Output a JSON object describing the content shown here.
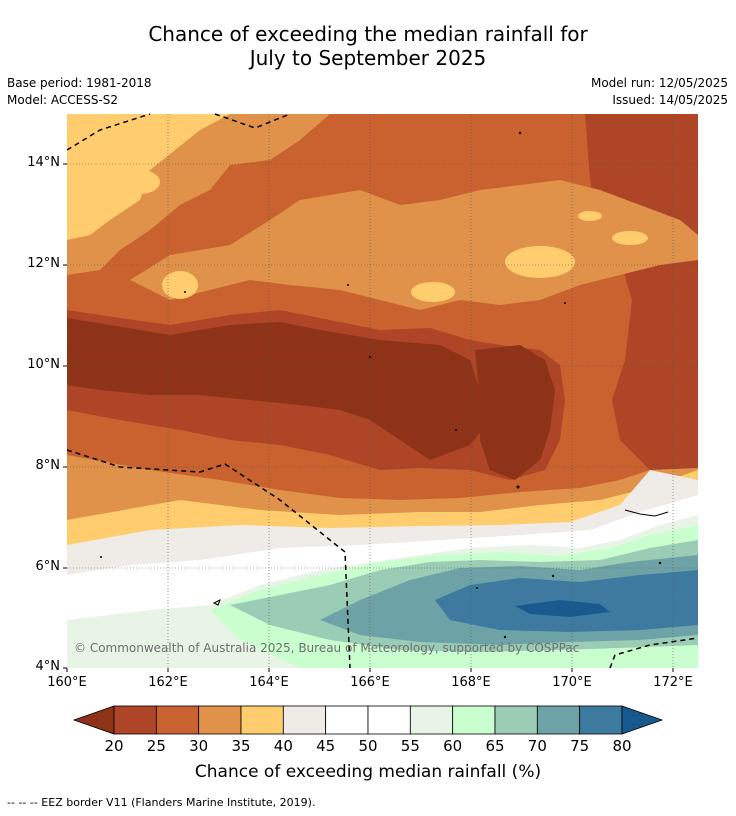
{
  "title_line1": "Chance of exceeding the median rainfall for",
  "title_line2": "July to September 2025",
  "base_period": "Base period: 1981-2018",
  "model": "Model: ACCESS-S2",
  "model_run": "Model run: 12/05/2025",
  "issued": "Issued: 14/05/2025",
  "lat_labels": [
    "14°N",
    "12°N",
    "10°N",
    "8°N",
    "6°N",
    "4°N"
  ],
  "lon_labels": [
    "160°E",
    "162°E",
    "164°E",
    "166°E",
    "168°E",
    "170°E",
    "172°E"
  ],
  "copyright": "© Commonwealth of Australia 2025, Bureau of Meteorology, supported by COSPPac",
  "colorbar": {
    "ticks": [
      "20",
      "25",
      "30",
      "35",
      "40",
      "45",
      "50",
      "55",
      "60",
      "65",
      "70",
      "75",
      "80"
    ],
    "label": "Chance of exceeding median rainfall (%)",
    "colors": [
      "#8e3218",
      "#ad4526",
      "#c9622e",
      "#e0924a",
      "#ffcd6e",
      "#efebe6",
      "#ffffff",
      "#ffffff",
      "#e8f5e6",
      "#c9ffcf",
      "#9bcdb6",
      "#6da3a6",
      "#3e7aa0",
      "#185a8e"
    ]
  },
  "footnote": "-- -- -- EEZ border V11 (Flanders Marine Institute, 2019)."
}
